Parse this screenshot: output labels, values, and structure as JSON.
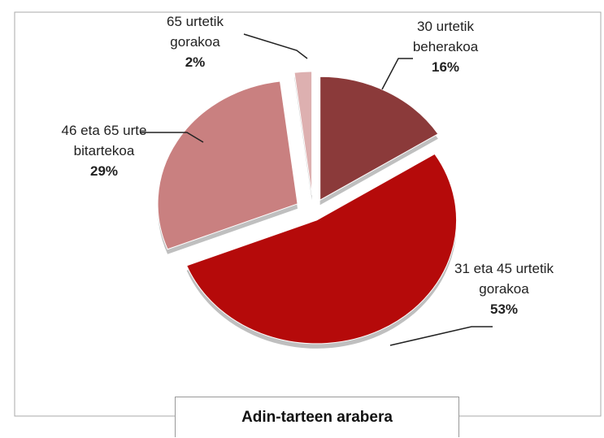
{
  "chart_data": {
    "type": "pie",
    "title": "Adin-tarteen arabera",
    "categories": [
      "30 urtetik beherakoa",
      "31 eta 45 urtetik gorakoa",
      "46 eta 65 urte bitartekoa",
      "65 urtetik gorakoa"
    ],
    "values": [
      16,
      53,
      29,
      2
    ],
    "value_labels": [
      "16%",
      "53%",
      "29%",
      "2%"
    ],
    "colors": [
      "#8b3a3a",
      "#b50a0a",
      "#c98080",
      "#ddb0b0"
    ]
  }
}
